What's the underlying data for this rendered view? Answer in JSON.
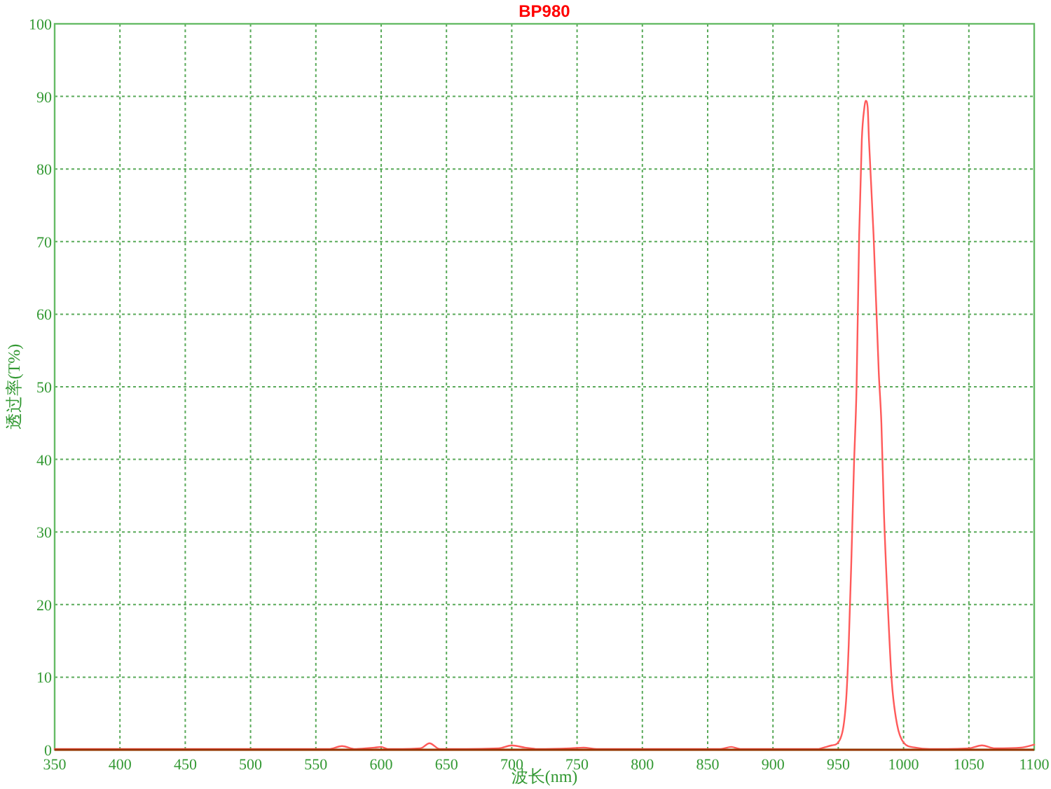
{
  "chart_data": {
    "type": "line",
    "title": "BP980",
    "xlabel": "波长(nm)",
    "ylabel": "透过率(T%)",
    "series": [
      {
        "color": "#ff5a5a",
        "x": [
          350,
          560,
          570,
          580,
          595,
          600,
          605,
          630,
          637,
          645,
          690,
          700,
          710,
          720,
          745,
          755,
          765,
          860,
          868,
          875,
          935,
          939,
          945,
          951,
          956,
          958,
          960,
          962,
          964,
          966,
          968,
          970,
          971,
          972.5,
          973.5,
          977,
          981,
          983,
          985,
          988,
          991,
          995,
          1000,
          1009,
          1020,
          1050,
          1060,
          1070,
          1090,
          1100
        ],
        "values": [
          0.1,
          0.1,
          0.5,
          0.1,
          0.3,
          0.4,
          0.1,
          0.2,
          0.9,
          0.1,
          0.2,
          0.6,
          0.3,
          0.1,
          0.2,
          0.3,
          0.1,
          0.1,
          0.4,
          0.1,
          0.1,
          0.3,
          0.6,
          1.3,
          6.8,
          14.5,
          26,
          39,
          50,
          71,
          84,
          88.5,
          89.4,
          88.5,
          84,
          71,
          52,
          45,
          32.5,
          19.6,
          9.3,
          3.5,
          1,
          0.3,
          0.1,
          0.2,
          0.6,
          0.2,
          0.3,
          0.7
        ]
      }
    ],
    "xlim": [
      350,
      1100
    ],
    "ylim": [
      0,
      100
    ],
    "xticks": [
      350,
      400,
      450,
      500,
      550,
      600,
      650,
      700,
      750,
      800,
      850,
      900,
      950,
      1000,
      1050,
      1100
    ],
    "yticks": [
      0,
      10,
      20,
      30,
      40,
      50,
      60,
      70,
      80,
      90,
      100
    ],
    "grid": true
  }
}
